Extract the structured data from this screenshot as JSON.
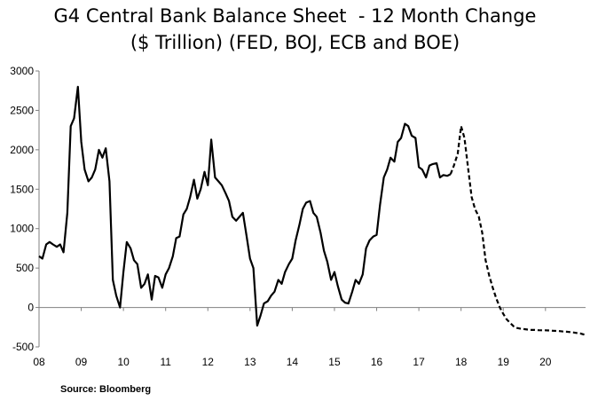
{
  "chart_data": {
    "type": "line",
    "title_line1": "G4 Central Bank Balance Sheet  - 12 Month Change",
    "title_line2": "($ Trillion) (FED, BOJ, ECB and BOE)",
    "xlabel": "",
    "ylabel": "",
    "source": "Source:  Bloomberg",
    "ylim": [
      -500,
      3000
    ],
    "xlim": [
      2008,
      2020.95
    ],
    "yticks": [
      -500,
      0,
      500,
      1000,
      1500,
      2000,
      2500,
      3000
    ],
    "xticks": [
      {
        "value": 2008,
        "label": "08"
      },
      {
        "value": 2009,
        "label": "09"
      },
      {
        "value": 2010,
        "label": "10"
      },
      {
        "value": 2011,
        "label": "11"
      },
      {
        "value": 2012,
        "label": "12"
      },
      {
        "value": 2013,
        "label": "13"
      },
      {
        "value": 2014,
        "label": "14"
      },
      {
        "value": 2015,
        "label": "15"
      },
      {
        "value": 2016,
        "label": "16"
      },
      {
        "value": 2017,
        "label": "17"
      },
      {
        "value": 2018,
        "label": "18"
      },
      {
        "value": 2019,
        "label": "19"
      },
      {
        "value": 2020,
        "label": "20"
      }
    ],
    "legend": "none",
    "grid": false,
    "series": [
      {
        "style": "solid",
        "x": [
          2008.0,
          2008.08,
          2008.17,
          2008.25,
          2008.33,
          2008.42,
          2008.5,
          2008.58,
          2008.67,
          2008.75,
          2008.83,
          2008.92,
          2009.0,
          2009.08,
          2009.17,
          2009.25,
          2009.33,
          2009.42,
          2009.5,
          2009.58,
          2009.67,
          2009.75,
          2009.83,
          2009.92,
          2010.0,
          2010.08,
          2010.17,
          2010.25,
          2010.33,
          2010.42,
          2010.5,
          2010.58,
          2010.67,
          2010.75,
          2010.83,
          2010.92,
          2011.0,
          2011.08,
          2011.17,
          2011.25,
          2011.33,
          2011.42,
          2011.5,
          2011.58,
          2011.67,
          2011.75,
          2011.83,
          2011.92,
          2012.0,
          2012.08,
          2012.17,
          2012.25,
          2012.33,
          2012.42,
          2012.5,
          2012.58,
          2012.67,
          2012.75,
          2012.83,
          2012.92,
          2013.0,
          2013.08,
          2013.17,
          2013.25,
          2013.33,
          2013.42,
          2013.5,
          2013.58,
          2013.67,
          2013.75,
          2013.83,
          2013.92,
          2014.0,
          2014.08,
          2014.17,
          2014.25,
          2014.33,
          2014.42,
          2014.5,
          2014.58,
          2014.67,
          2014.75,
          2014.83,
          2014.92,
          2015.0,
          2015.08,
          2015.17,
          2015.25,
          2015.33,
          2015.42,
          2015.5,
          2015.58,
          2015.67,
          2015.75,
          2015.83,
          2015.92,
          2016.0,
          2016.08,
          2016.17,
          2016.25,
          2016.33,
          2016.42,
          2016.5,
          2016.58,
          2016.67,
          2016.75,
          2016.83,
          2016.92,
          2017.0,
          2017.08,
          2017.17,
          2017.25,
          2017.33,
          2017.42,
          2017.5,
          2017.58,
          2017.67,
          2017.75
        ],
        "values": [
          650,
          620,
          800,
          830,
          800,
          770,
          800,
          700,
          1200,
          2300,
          2400,
          2800,
          2100,
          1750,
          1600,
          1650,
          1750,
          2000,
          1900,
          2020,
          1600,
          350,
          150,
          0,
          450,
          830,
          750,
          600,
          550,
          250,
          300,
          420,
          100,
          400,
          380,
          250,
          420,
          500,
          650,
          880,
          900,
          1180,
          1250,
          1400,
          1620,
          1380,
          1500,
          1720,
          1550,
          2130,
          1650,
          1600,
          1550,
          1450,
          1350,
          1150,
          1100,
          1150,
          1200,
          900,
          620,
          500,
          -230,
          -100,
          50,
          80,
          150,
          200,
          350,
          300,
          450,
          550,
          620,
          850,
          1050,
          1250,
          1330,
          1350,
          1200,
          1150,
          950,
          720,
          580,
          350,
          450,
          270,
          100,
          60,
          50,
          200,
          350,
          300,
          420,
          750,
          850,
          900,
          920,
          1300,
          1650,
          1750,
          1900,
          1850,
          2100,
          2150,
          2330,
          2300,
          2180,
          2150,
          1780,
          1750,
          1650,
          1800,
          1820,
          1830,
          1650,
          1680,
          1670,
          1690
        ]
      },
      {
        "style": "dashed",
        "x": [
          2017.75,
          2017.83,
          2017.92,
          2018.0,
          2018.08,
          2018.17,
          2018.25,
          2018.33,
          2018.42,
          2018.5,
          2018.58,
          2018.67,
          2018.75,
          2018.83,
          2018.92,
          2019.0,
          2019.08,
          2019.17,
          2019.25,
          2019.33,
          2019.42,
          2019.5,
          2019.58,
          2019.67,
          2019.75,
          2019.83,
          2019.92,
          2020.0,
          2020.08,
          2020.17,
          2020.25,
          2020.33,
          2020.42,
          2020.5,
          2020.58,
          2020.67,
          2020.75,
          2020.83,
          2020.92
        ],
        "values": [
          1690,
          1800,
          1950,
          2300,
          2150,
          1750,
          1400,
          1250,
          1150,
          950,
          600,
          400,
          250,
          120,
          0,
          -80,
          -150,
          -200,
          -240,
          -260,
          -270,
          -275,
          -280,
          -285,
          -285,
          -288,
          -290,
          -290,
          -292,
          -295,
          -297,
          -300,
          -305,
          -308,
          -312,
          -318,
          -325,
          -330,
          -345
        ]
      }
    ]
  }
}
